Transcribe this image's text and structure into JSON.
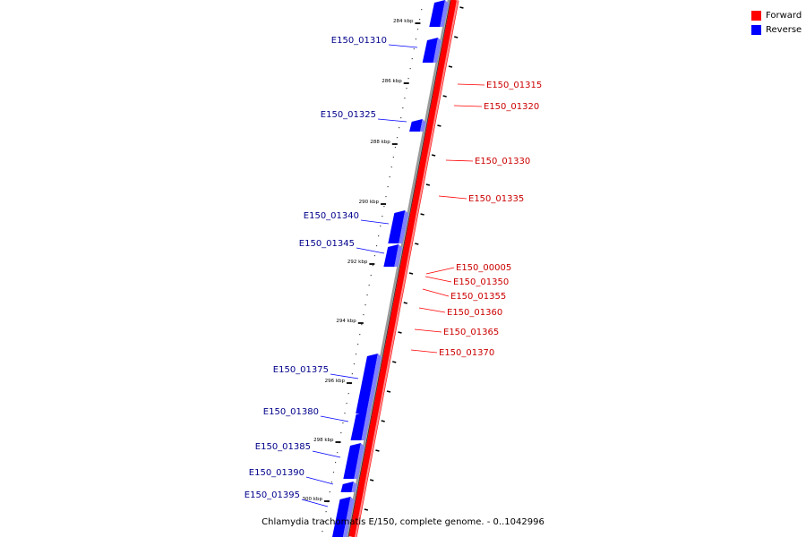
{
  "genome": {
    "caption": "Chlamydia trachomatis E/150, complete genome. - 0..1042996"
  },
  "legend": {
    "forward": {
      "label": "Forward",
      "color": "#ff0000"
    },
    "reverse": {
      "label": "Reverse",
      "color": "#0000ff"
    }
  },
  "ticks": [
    "284 kbp",
    "286 kbp",
    "288 kbp",
    "290 kbp",
    "292 kbp",
    "294 kbp",
    "296 kbp",
    "298 kbp",
    "300 kbp"
  ],
  "genes": {
    "reverse": [
      "E150_01310",
      "E150_01325",
      "E150_01340",
      "E150_01345",
      "E150_01375",
      "E150_01380",
      "E150_01385",
      "E150_01390",
      "E150_01395"
    ],
    "forward": [
      "E150_01315",
      "E150_01320",
      "E150_01330",
      "E150_01335",
      "E150_00005",
      "E150_01350",
      "E150_01355",
      "E150_01360",
      "E150_01365",
      "E150_01370"
    ]
  }
}
